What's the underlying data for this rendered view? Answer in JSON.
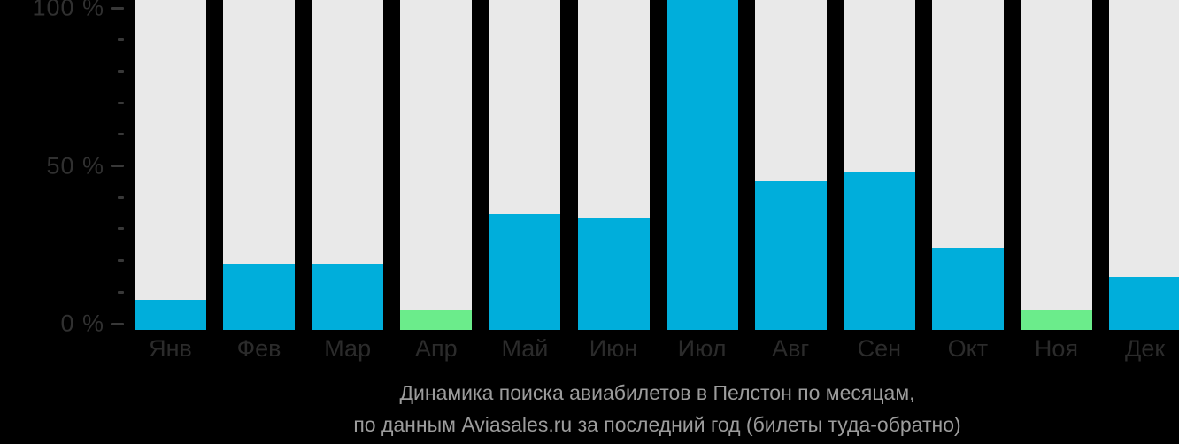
{
  "background": "#000000",
  "colors": {
    "cyan": "#00AEDB",
    "green": "#6BEC8B",
    "track": "#e9e9e9",
    "axis_text": "#303030",
    "tick_dash": "#383838",
    "month_text": "#2b2b2b",
    "caption_text": "#9c9c9c"
  },
  "chart_data": {
    "type": "bar",
    "title": "Динамика поиска авиабилетов в Пелстон по месяцам, по данным Aviasales.ru за последний год (билеты туда-обратно)",
    "title_lines": [
      "Динамика поиска авиабилетов в Пелстон по месяцам,",
      "по данным Aviasales.ru за последний год (билеты туда-обратно)"
    ],
    "categories": [
      "Янв",
      "Фев",
      "Мар",
      "Апр",
      "Май",
      "Июн",
      "Июл",
      "Авг",
      "Сен",
      "Окт",
      "Ноя",
      "Дек"
    ],
    "category_keys": [
      "jan",
      "feb",
      "mar",
      "apr",
      "may",
      "jun",
      "jul",
      "aug",
      "sep",
      "oct",
      "nov",
      "dec"
    ],
    "values": [
      9,
      20,
      20,
      6,
      35,
      34,
      100,
      45,
      48,
      25,
      6,
      16
    ],
    "bar_colors": [
      "cyan",
      "cyan",
      "cyan",
      "green",
      "cyan",
      "cyan",
      "cyan",
      "cyan",
      "cyan",
      "cyan",
      "green",
      "cyan"
    ],
    "ylabel": "",
    "xlabel": "",
    "ylim": [
      0,
      100
    ],
    "ytick_step": 10,
    "ytick_labels": {
      "100": "100 %",
      "50": "50 %",
      "0": "0 %"
    },
    "grid": false,
    "legend": "none",
    "track_full_height": true
  }
}
